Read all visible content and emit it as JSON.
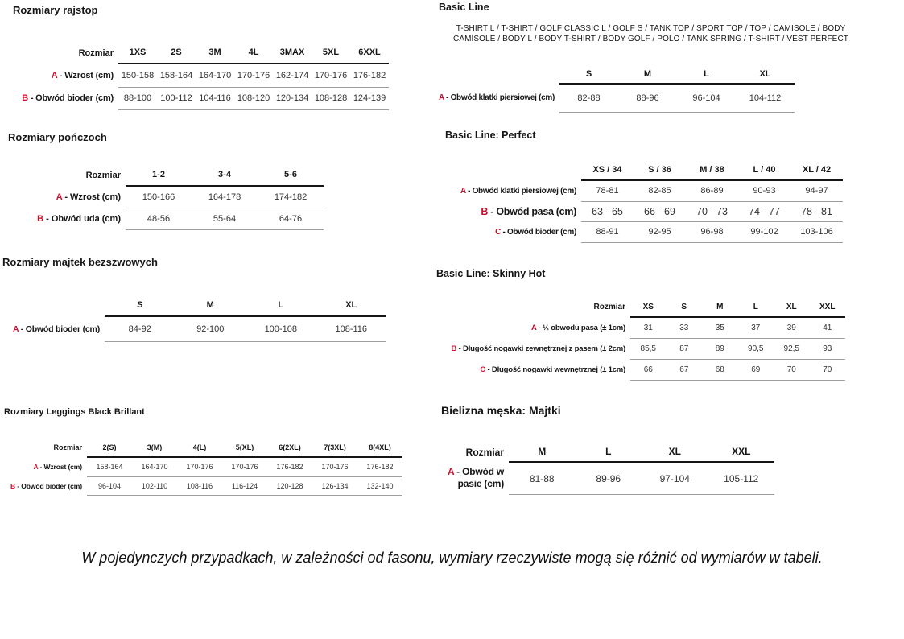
{
  "colors": {
    "accent_red": "#c8102e"
  },
  "footer_note": "W pojedynczych przypadkach, w zależności od fasonu, wymiary rzeczywiste mogą się różnić od wymiarów w tabeli.",
  "tables": [
    {
      "id": "rajstop",
      "title": "Rozmiary rajstop",
      "corner": "Rozmiar",
      "columns": [
        "1XS",
        "2S",
        "3M",
        "4L",
        "3MAX",
        "5XL",
        "6XXL"
      ],
      "rows": [
        {
          "letter": "A",
          "label": "- Wzrost (cm)",
          "values": [
            "150-158",
            "158-164",
            "164-170",
            "170-176",
            "162-174",
            "170-176",
            "176-182"
          ]
        },
        {
          "letter": "B",
          "label": "- Obwód bioder (cm)",
          "values": [
            "88-100",
            "100-112",
            "104-116",
            "108-120",
            "120-134",
            "108-128",
            "124-139"
          ]
        }
      ]
    },
    {
      "id": "ponczochy",
      "title": "Rozmiary pończoch",
      "corner": "Rozmiar",
      "columns": [
        "1-2",
        "3-4",
        "5-6"
      ],
      "rows": [
        {
          "letter": "A",
          "label": "- Wzrost (cm)",
          "values": [
            "150-166",
            "164-178",
            "174-182"
          ]
        },
        {
          "letter": "B",
          "label": "- Obwód uda (cm)",
          "values": [
            "48-56",
            "55-64",
            "64-76"
          ]
        }
      ]
    },
    {
      "id": "majtki-bezszwowe",
      "title": "Rozmiary majtek bezszwowych",
      "corner": "",
      "columns": [
        "S",
        "M",
        "L",
        "XL"
      ],
      "rows": [
        {
          "letter": "A",
          "label": "- Obwód bioder (cm)",
          "values": [
            "84-92",
            "92-100",
            "100-108",
            "108-116"
          ]
        }
      ]
    },
    {
      "id": "leggings-black-brillant",
      "title": "Rozmiary Leggings Black Brillant",
      "corner": "Rozmiar",
      "columns": [
        "2(S)",
        "3(M)",
        "4(L)",
        "5(XL)",
        "6(2XL)",
        "7(3XL)",
        "8(4XL)"
      ],
      "rows": [
        {
          "letter": "A",
          "label": "- Wzrost (cm)",
          "values": [
            "158-164",
            "164-170",
            "170-176",
            "170-176",
            "176-182",
            "170-176",
            "176-182"
          ]
        },
        {
          "letter": "B",
          "label": "- Obwód bioder (cm)",
          "values": [
            "96-104",
            "102-110",
            "108-116",
            "116-124",
            "120-128",
            "126-134",
            "132-140"
          ]
        }
      ]
    },
    {
      "id": "basic-line",
      "title": "Basic Line",
      "subtitle": "T-SHIRT L / T-SHIRT / GOLF CLASSIC L / GOLF S / TANK TOP / SPORT TOP / TOP / CAMISOLE / BODY CAMISOLE / BODY L / BODY T-SHIRT / BODY GOLF / POLO / TANK SPRING / T-SHIRT / VEST PERFECT",
      "corner": "",
      "columns": [
        "S",
        "M",
        "L",
        "XL"
      ],
      "rows": [
        {
          "letter": "A",
          "label": "- Obwód klatki piersiowej (cm)",
          "values": [
            "82-88",
            "88-96",
            "96-104",
            "104-112"
          ]
        }
      ]
    },
    {
      "id": "basic-line-perfect",
      "title": "Basic Line: Perfect",
      "corner": "",
      "columns": [
        "XS / 34",
        "S / 36",
        "M / 38",
        "L / 40",
        "XL / 42"
      ],
      "rows": [
        {
          "letter": "A",
          "label": "- Obwód klatki piersiowej (cm)",
          "values": [
            "78-81",
            "82-85",
            "86-89",
            "90-93",
            "94-97"
          ]
        },
        {
          "letter": "B",
          "label": "- Obwód pasa (cm)",
          "values": [
            "63 - 65",
            "66 - 69",
            "70 - 73",
            "74 - 77",
            "78 - 81"
          ]
        },
        {
          "letter": "C",
          "label": "- Obwód bioder (cm)",
          "values": [
            "88-91",
            "92-95",
            "96-98",
            "99-102",
            "103-106"
          ]
        }
      ]
    },
    {
      "id": "basic-line-skinny-hot",
      "title": "Basic Line: Skinny Hot",
      "corner": "Rozmiar",
      "columns": [
        "XS",
        "S",
        "M",
        "L",
        "XL",
        "XXL"
      ],
      "rows": [
        {
          "letter": "A",
          "label": "- ½ obwodu pasa (± 1cm)",
          "values": [
            "31",
            "33",
            "35",
            "37",
            "39",
            "41"
          ]
        },
        {
          "letter": "B",
          "label": "- Długość nogawki zewnętrznej z pasem (± 2cm)",
          "values": [
            "85,5",
            "87",
            "89",
            "90,5",
            "92,5",
            "93"
          ]
        },
        {
          "letter": "C",
          "label": "- Długość nogawki wewnętrznej (± 1cm)",
          "values": [
            "66",
            "67",
            "68",
            "69",
            "70",
            "70"
          ]
        }
      ]
    },
    {
      "id": "bielizna-meska-majtki",
      "title": "Bielizna męska: Majtki",
      "corner": "Rozmiar",
      "columns": [
        "M",
        "L",
        "XL",
        "XXL"
      ],
      "rows": [
        {
          "letter": "A",
          "label": "- Obwód w pasie (cm)",
          "values": [
            "81-88",
            "89-96",
            "97-104",
            "105-112"
          ]
        }
      ]
    }
  ]
}
